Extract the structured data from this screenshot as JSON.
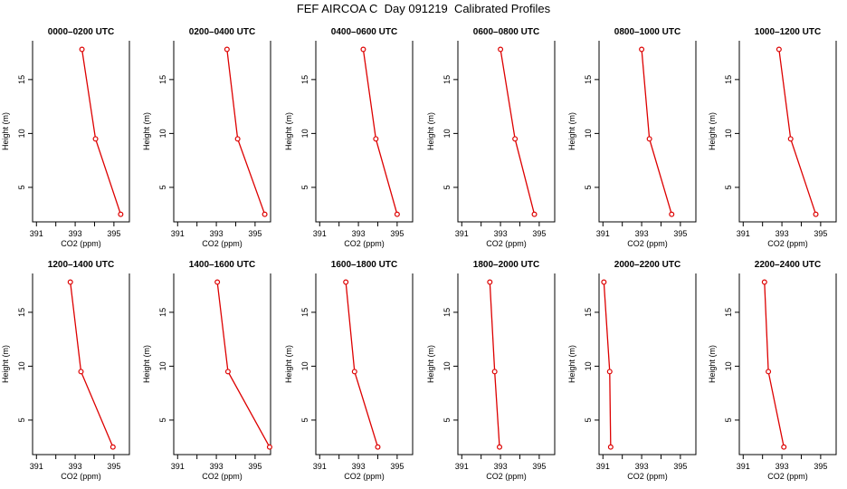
{
  "title": "FEF AIRCOA C  Day 091219  Calibrated Profiles",
  "colors": {
    "series": "#dd0000",
    "axis": "#000000",
    "background": "#ffffff"
  },
  "chart_data": [
    {
      "type": "line",
      "title": "0000–0200 UTC",
      "xlabel": "CO2 (ppm)",
      "ylabel": "Height (m)",
      "xlim": [
        390.8,
        395.8
      ],
      "ylim": [
        1.8,
        18.6
      ],
      "x_ticks": [
        391,
        392,
        393,
        394,
        395
      ],
      "x_tick_labels": [
        "391",
        "393",
        "395"
      ],
      "y_ticks": [
        5,
        10,
        15
      ],
      "x": [
        393.35,
        394.05,
        395.35
      ],
      "y": [
        17.8,
        9.5,
        2.5
      ]
    },
    {
      "type": "line",
      "title": "0200–0400 UTC",
      "xlabel": "CO2 (ppm)",
      "ylabel": "Height (m)",
      "xlim": [
        390.8,
        395.8
      ],
      "ylim": [
        1.8,
        18.6
      ],
      "x_ticks": [
        391,
        392,
        393,
        394,
        395
      ],
      "x_tick_labels": [
        "391",
        "393",
        "395"
      ],
      "y_ticks": [
        5,
        10,
        15
      ],
      "x": [
        393.55,
        394.1,
        395.5
      ],
      "y": [
        17.8,
        9.5,
        2.5
      ]
    },
    {
      "type": "line",
      "title": "0400–0600 UTC",
      "xlabel": "CO2 (ppm)",
      "ylabel": "Height (m)",
      "xlim": [
        390.8,
        395.8
      ],
      "ylim": [
        1.8,
        18.6
      ],
      "x_ticks": [
        391,
        392,
        393,
        394,
        395
      ],
      "x_tick_labels": [
        "391",
        "393",
        "395"
      ],
      "y_ticks": [
        5,
        10,
        15
      ],
      "x": [
        393.25,
        393.9,
        395.0
      ],
      "y": [
        17.8,
        9.5,
        2.5
      ]
    },
    {
      "type": "line",
      "title": "0600–0800 UTC",
      "xlabel": "CO2 (ppm)",
      "ylabel": "Height (m)",
      "xlim": [
        390.8,
        395.8
      ],
      "ylim": [
        1.8,
        18.6
      ],
      "x_ticks": [
        391,
        392,
        393,
        394,
        395
      ],
      "x_tick_labels": [
        "391",
        "393",
        "395"
      ],
      "y_ticks": [
        5,
        10,
        15
      ],
      "x": [
        393.0,
        393.75,
        394.75
      ],
      "y": [
        17.8,
        9.5,
        2.5
      ]
    },
    {
      "type": "line",
      "title": "0800–1000 UTC",
      "xlabel": "CO2 (ppm)",
      "ylabel": "Height (m)",
      "xlim": [
        390.8,
        395.8
      ],
      "ylim": [
        1.8,
        18.6
      ],
      "x_ticks": [
        391,
        392,
        393,
        394,
        395
      ],
      "x_tick_labels": [
        "391",
        "393",
        "395"
      ],
      "y_ticks": [
        5,
        10,
        15
      ],
      "x": [
        393.0,
        393.4,
        394.55
      ],
      "y": [
        17.8,
        9.5,
        2.5
      ]
    },
    {
      "type": "line",
      "title": "1000–1200 UTC",
      "xlabel": "CO2 (ppm)",
      "ylabel": "Height (m)",
      "xlim": [
        390.8,
        395.8
      ],
      "ylim": [
        1.8,
        18.6
      ],
      "x_ticks": [
        391,
        392,
        393,
        394,
        395
      ],
      "x_tick_labels": [
        "391",
        "393",
        "395"
      ],
      "y_ticks": [
        5,
        10,
        15
      ],
      "x": [
        392.85,
        393.45,
        394.75
      ],
      "y": [
        17.8,
        9.5,
        2.5
      ]
    },
    {
      "type": "line",
      "title": "1200–1400 UTC",
      "xlabel": "CO2 (ppm)",
      "ylabel": "Height (m)",
      "xlim": [
        390.8,
        395.8
      ],
      "ylim": [
        1.8,
        18.6
      ],
      "x_ticks": [
        391,
        392,
        393,
        394,
        395
      ],
      "x_tick_labels": [
        "391",
        "393",
        "395"
      ],
      "y_ticks": [
        5,
        10,
        15
      ],
      "x": [
        392.75,
        393.3,
        394.95
      ],
      "y": [
        17.8,
        9.5,
        2.5
      ]
    },
    {
      "type": "line",
      "title": "1400–1600 UTC",
      "xlabel": "CO2 (ppm)",
      "ylabel": "Height (m)",
      "xlim": [
        390.8,
        395.8
      ],
      "ylim": [
        1.8,
        18.6
      ],
      "x_ticks": [
        391,
        392,
        393,
        394,
        395
      ],
      "x_tick_labels": [
        "391",
        "393",
        "395"
      ],
      "y_ticks": [
        5,
        10,
        15
      ],
      "x": [
        393.05,
        393.6,
        395.75
      ],
      "y": [
        17.8,
        9.5,
        2.5
      ]
    },
    {
      "type": "line",
      "title": "1600–1800 UTC",
      "xlabel": "CO2 (ppm)",
      "ylabel": "Height (m)",
      "xlim": [
        390.8,
        395.8
      ],
      "ylim": [
        1.8,
        18.6
      ],
      "x_ticks": [
        391,
        392,
        393,
        394,
        395
      ],
      "x_tick_labels": [
        "391",
        "393",
        "395"
      ],
      "y_ticks": [
        5,
        10,
        15
      ],
      "x": [
        392.35,
        392.8,
        394.0
      ],
      "y": [
        17.8,
        9.5,
        2.5
      ]
    },
    {
      "type": "line",
      "title": "1800–2000 UTC",
      "xlabel": "CO2 (ppm)",
      "ylabel": "Height (m)",
      "xlim": [
        390.8,
        395.8
      ],
      "ylim": [
        1.8,
        18.6
      ],
      "x_ticks": [
        391,
        392,
        393,
        394,
        395
      ],
      "x_tick_labels": [
        "391",
        "393",
        "395"
      ],
      "y_ticks": [
        5,
        10,
        15
      ],
      "x": [
        392.45,
        392.7,
        392.95
      ],
      "y": [
        17.8,
        9.5,
        2.5
      ]
    },
    {
      "type": "line",
      "title": "2000–2200 UTC",
      "xlabel": "CO2 (ppm)",
      "ylabel": "Height (m)",
      "xlim": [
        390.8,
        395.8
      ],
      "ylim": [
        1.8,
        18.6
      ],
      "x_ticks": [
        391,
        392,
        393,
        394,
        395
      ],
      "x_tick_labels": [
        "391",
        "393",
        "395"
      ],
      "y_ticks": [
        5,
        10,
        15
      ],
      "x": [
        391.05,
        391.35,
        391.4
      ],
      "y": [
        17.8,
        9.5,
        2.5
      ]
    },
    {
      "type": "line",
      "title": "2200–2400 UTC",
      "xlabel": "CO2 (ppm)",
      "ylabel": "Height (m)",
      "xlim": [
        390.8,
        395.8
      ],
      "ylim": [
        1.8,
        18.6
      ],
      "x_ticks": [
        391,
        392,
        393,
        394,
        395
      ],
      "x_tick_labels": [
        "391",
        "393",
        "395"
      ],
      "y_ticks": [
        5,
        10,
        15
      ],
      "x": [
        392.1,
        392.3,
        393.1
      ],
      "y": [
        17.8,
        9.5,
        2.5
      ]
    }
  ]
}
